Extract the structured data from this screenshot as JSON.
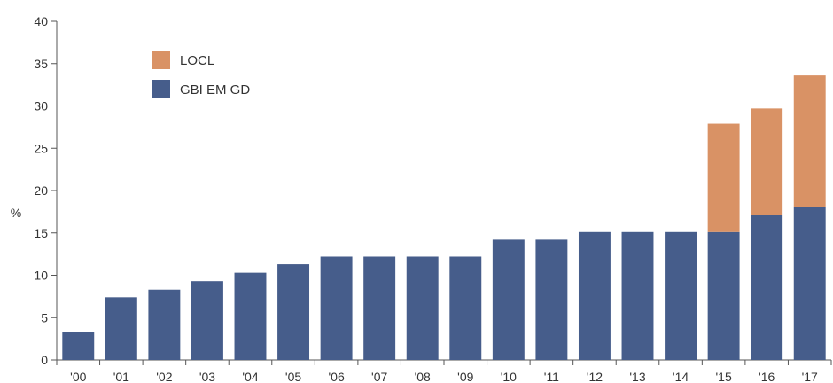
{
  "chart_data": {
    "type": "bar",
    "stacked": true,
    "ylabel": "%",
    "ylim": [
      0,
      40
    ],
    "yticks": [
      0,
      5,
      10,
      15,
      20,
      25,
      30,
      35,
      40
    ],
    "grid": false,
    "legend_position": "top-left",
    "categories": [
      "'00",
      "'01",
      "'02",
      "'03",
      "'04",
      "'05",
      "'06",
      "'07",
      "'08",
      "'09",
      "'10",
      "'11",
      "'12",
      "'13",
      "'14",
      "'15",
      "'16",
      "'17"
    ],
    "series": [
      {
        "name": "GBI EM GD",
        "color": "#465d8b",
        "values": [
          3.3,
          7.4,
          8.3,
          9.3,
          10.3,
          11.3,
          12.2,
          12.2,
          12.2,
          12.2,
          14.2,
          14.2,
          15.1,
          15.1,
          15.1,
          15.1,
          17.1,
          18.1
        ]
      },
      {
        "name": "LOCL",
        "color": "#d99265",
        "values": [
          0,
          0,
          0,
          0,
          0,
          0,
          0,
          0,
          0,
          0,
          0,
          0,
          0,
          0,
          0,
          12.8,
          12.6,
          15.5
        ]
      }
    ]
  }
}
